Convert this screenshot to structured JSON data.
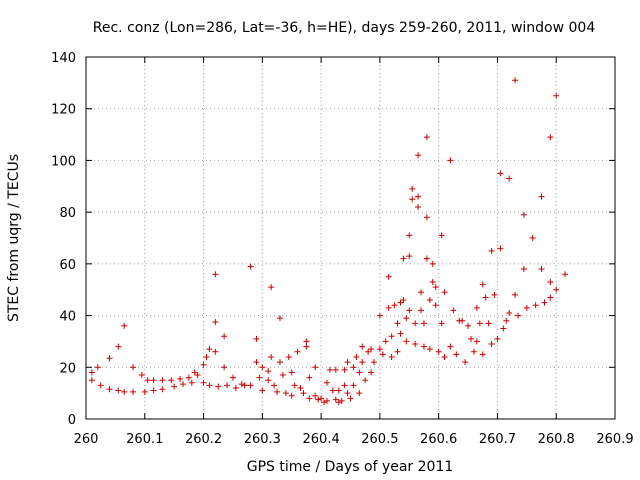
{
  "chart_data": {
    "type": "scatter",
    "title": "Rec. conz (Lon=286, Lat=-36, h=HE), days 259-260, 2011, window 004",
    "xlabel": "GPS time / Days of year 2011",
    "ylabel": "STEC from uqrg / TECUs",
    "xlim": [
      260,
      260.9
    ],
    "ylim": [
      0,
      140
    ],
    "xticks": [
      260,
      260.1,
      260.2,
      260.3,
      260.4,
      260.5,
      260.6,
      260.7,
      260.8,
      260.9
    ],
    "xtick_labels": [
      "260",
      "260.1",
      "260.2",
      "260.3",
      "260.4",
      "260.5",
      "260.6",
      "260.7",
      "260.8",
      "260.9"
    ],
    "yticks": [
      0,
      20,
      40,
      60,
      80,
      100,
      120,
      140
    ],
    "ytick_labels": [
      "0",
      "20",
      "40",
      "60",
      "80",
      "100",
      "120",
      "140"
    ],
    "grid": true,
    "marker": "+",
    "color": "#cc0000",
    "series": [
      {
        "name": "STEC",
        "points": [
          [
            260.01,
            18
          ],
          [
            260.01,
            15
          ],
          [
            260.02,
            20
          ],
          [
            260.025,
            13
          ],
          [
            260.04,
            23.5
          ],
          [
            260.04,
            11.5
          ],
          [
            260.055,
            28
          ],
          [
            260.055,
            11
          ],
          [
            260.065,
            36
          ],
          [
            260.065,
            10.5
          ],
          [
            260.08,
            20
          ],
          [
            260.08,
            10.5
          ],
          [
            260.095,
            17
          ],
          [
            260.1,
            10.5
          ],
          [
            260.105,
            15
          ],
          [
            260.115,
            15
          ],
          [
            260.115,
            11
          ],
          [
            260.13,
            15
          ],
          [
            260.13,
            11.5
          ],
          [
            260.145,
            15
          ],
          [
            260.15,
            12.5
          ],
          [
            260.16,
            15.5
          ],
          [
            260.165,
            13.5
          ],
          [
            260.175,
            16
          ],
          [
            260.18,
            14
          ],
          [
            260.185,
            18
          ],
          [
            260.19,
            17
          ],
          [
            260.2,
            21
          ],
          [
            260.2,
            14
          ],
          [
            260.205,
            24
          ],
          [
            260.21,
            27
          ],
          [
            260.21,
            13
          ],
          [
            260.22,
            56
          ],
          [
            260.22,
            37.5
          ],
          [
            260.22,
            26
          ],
          [
            260.225,
            12.5
          ],
          [
            260.235,
            32
          ],
          [
            260.235,
            20
          ],
          [
            260.24,
            13
          ],
          [
            260.25,
            16
          ],
          [
            260.255,
            12
          ],
          [
            260.265,
            13.5
          ],
          [
            260.27,
            13
          ],
          [
            260.28,
            59
          ],
          [
            260.28,
            13
          ],
          [
            260.29,
            31
          ],
          [
            260.29,
            22
          ],
          [
            260.295,
            16
          ],
          [
            260.3,
            11
          ],
          [
            260.3,
            20
          ],
          [
            260.31,
            18.5
          ],
          [
            260.31,
            15
          ],
          [
            260.315,
            51
          ],
          [
            260.315,
            24
          ],
          [
            260.32,
            13
          ],
          [
            260.325,
            10.5
          ],
          [
            260.33,
            39
          ],
          [
            260.33,
            22
          ],
          [
            260.335,
            17
          ],
          [
            260.34,
            10
          ],
          [
            260.345,
            24
          ],
          [
            260.35,
            18
          ],
          [
            260.35,
            9
          ],
          [
            260.355,
            13
          ],
          [
            260.36,
            26
          ],
          [
            260.365,
            12
          ],
          [
            260.37,
            10
          ],
          [
            260.375,
            30
          ],
          [
            260.375,
            28
          ],
          [
            260.38,
            16
          ],
          [
            260.38,
            8
          ],
          [
            260.39,
            20
          ],
          [
            260.39,
            9
          ],
          [
            260.395,
            7.5
          ],
          [
            260.4,
            8
          ],
          [
            260.405,
            6.5
          ],
          [
            260.41,
            14
          ],
          [
            260.41,
            7
          ],
          [
            260.415,
            19
          ],
          [
            260.42,
            11
          ],
          [
            260.425,
            19
          ],
          [
            260.425,
            7.5
          ],
          [
            260.43,
            11
          ],
          [
            260.43,
            6.5
          ],
          [
            260.435,
            7
          ],
          [
            260.44,
            19
          ],
          [
            260.44,
            13
          ],
          [
            260.445,
            22
          ],
          [
            260.445,
            10
          ],
          [
            260.45,
            8
          ],
          [
            260.455,
            20
          ],
          [
            260.455,
            13
          ],
          [
            260.46,
            24
          ],
          [
            260.465,
            18
          ],
          [
            260.465,
            10
          ],
          [
            260.47,
            28
          ],
          [
            260.47,
            22
          ],
          [
            260.475,
            15
          ],
          [
            260.48,
            26
          ],
          [
            260.485,
            27
          ],
          [
            260.485,
            18
          ],
          [
            260.49,
            22
          ],
          [
            260.5,
            40
          ],
          [
            260.5,
            27
          ],
          [
            260.505,
            25
          ],
          [
            260.51,
            30
          ],
          [
            260.515,
            55
          ],
          [
            260.515,
            43
          ],
          [
            260.52,
            32
          ],
          [
            260.52,
            24
          ],
          [
            260.525,
            44
          ],
          [
            260.53,
            37
          ],
          [
            260.53,
            26
          ],
          [
            260.535,
            45
          ],
          [
            260.535,
            33
          ],
          [
            260.54,
            62
          ],
          [
            260.54,
            46
          ],
          [
            260.545,
            39
          ],
          [
            260.545,
            30
          ],
          [
            260.55,
            71
          ],
          [
            260.55,
            63
          ],
          [
            260.55,
            42
          ],
          [
            260.555,
            89
          ],
          [
            260.555,
            85
          ],
          [
            260.56,
            37
          ],
          [
            260.56,
            29
          ],
          [
            260.565,
            102
          ],
          [
            260.565,
            86
          ],
          [
            260.565,
            82
          ],
          [
            260.57,
            49
          ],
          [
            260.57,
            42
          ],
          [
            260.575,
            37
          ],
          [
            260.575,
            28
          ],
          [
            260.58,
            109
          ],
          [
            260.58,
            78
          ],
          [
            260.58,
            62
          ],
          [
            260.585,
            46
          ],
          [
            260.585,
            27
          ],
          [
            260.59,
            60
          ],
          [
            260.59,
            53
          ],
          [
            260.595,
            51
          ],
          [
            260.595,
            44
          ],
          [
            260.6,
            26
          ],
          [
            260.605,
            71
          ],
          [
            260.605,
            37
          ],
          [
            260.61,
            49
          ],
          [
            260.61,
            24
          ],
          [
            260.62,
            100
          ],
          [
            260.62,
            28
          ],
          [
            260.625,
            42
          ],
          [
            260.63,
            25
          ],
          [
            260.635,
            38
          ],
          [
            260.64,
            38
          ],
          [
            260.645,
            22
          ],
          [
            260.65,
            36
          ],
          [
            260.655,
            31
          ],
          [
            260.66,
            26
          ],
          [
            260.665,
            43
          ],
          [
            260.665,
            30
          ],
          [
            260.67,
            37
          ],
          [
            260.675,
            52
          ],
          [
            260.675,
            25
          ],
          [
            260.68,
            47
          ],
          [
            260.685,
            37
          ],
          [
            260.69,
            65
          ],
          [
            260.69,
            29
          ],
          [
            260.695,
            48
          ],
          [
            260.7,
            31
          ],
          [
            260.705,
            95
          ],
          [
            260.705,
            66
          ],
          [
            260.71,
            35
          ],
          [
            260.715,
            38
          ],
          [
            260.72,
            93
          ],
          [
            260.72,
            41
          ],
          [
            260.73,
            131
          ],
          [
            260.73,
            48
          ],
          [
            260.735,
            40
          ],
          [
            260.745,
            79
          ],
          [
            260.745,
            58
          ],
          [
            260.75,
            43
          ],
          [
            260.76,
            70
          ],
          [
            260.765,
            44
          ],
          [
            260.775,
            86
          ],
          [
            260.775,
            58
          ],
          [
            260.78,
            45
          ],
          [
            260.79,
            109
          ],
          [
            260.79,
            53
          ],
          [
            260.79,
            47
          ],
          [
            260.8,
            125
          ],
          [
            260.8,
            50
          ],
          [
            260.815,
            56
          ]
        ]
      }
    ]
  }
}
